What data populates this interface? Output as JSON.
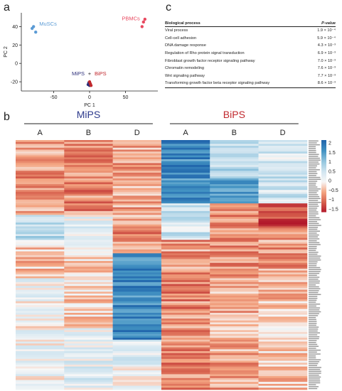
{
  "panels": {
    "a": "a",
    "b": "b",
    "c": "c"
  },
  "chart_data": [
    {
      "type": "scatter",
      "xlabel": "PC 1",
      "ylabel": "PC 2",
      "xticks": [
        -50,
        0,
        50
      ],
      "yticks": [
        -20,
        0,
        20,
        40
      ],
      "xlim": [
        -95,
        95
      ],
      "ylim": [
        -30,
        55
      ],
      "series": [
        {
          "name": "MuSCs",
          "color": "#5b9bd5",
          "points": [
            [
              -80,
              38
            ],
            [
              -78,
              40
            ],
            [
              -75,
              34
            ]
          ]
        },
        {
          "name": "PBMCs",
          "color": "#e8485f",
          "points": [
            [
              73,
              40
            ],
            [
              75,
              45
            ],
            [
              77,
              48
            ]
          ]
        },
        {
          "name": "MiPS",
          "color": "#2d2f7a",
          "points": [
            [
              -2,
              -23
            ],
            [
              -1,
              -21
            ],
            [
              0,
              -24
            ]
          ]
        },
        {
          "name": "BiPS",
          "color": "#c0282d",
          "points": [
            [
              1,
              -22
            ],
            [
              2,
              -24
            ],
            [
              0,
              -20
            ]
          ]
        }
      ],
      "annotation_plus": "+"
    },
    {
      "type": "heatmap",
      "groups": [
        {
          "name": "MiPS",
          "color": "#2d3a8c",
          "columns": [
            "A",
            "B",
            "D"
          ]
        },
        {
          "name": "BiPS",
          "color": "#c0282d",
          "columns": [
            "A",
            "B",
            "D"
          ]
        }
      ],
      "colorbar": {
        "ticks": [
          "2",
          "1.5",
          "1",
          "0.5",
          "0",
          "−0.5",
          "−1",
          "−1.5"
        ],
        "min": -1.5,
        "max": 2
      },
      "n_rows": 130
    }
  ],
  "table": {
    "header": {
      "process": "Biological process",
      "pvalue": "P-value"
    },
    "rows": [
      {
        "process": "Viral process",
        "pvalue": "1.9 × 10⁻⁴"
      },
      {
        "process": "Cell-cell adhesion",
        "pvalue": "5.9 × 10⁻⁴"
      },
      {
        "process": "DNA damage response",
        "pvalue": "4.3 × 10⁻³"
      },
      {
        "process": "Regulation of Rho protein signal transduction",
        "pvalue": "6.9 × 10⁻³"
      },
      {
        "process": "Fibroblast growth factor receptor signaling pathway",
        "pvalue": "7.0 × 10⁻³"
      },
      {
        "process": "Chromatin remodeling",
        "pvalue": "7.6 × 10⁻³"
      },
      {
        "process": "Wnt signaling pathway",
        "pvalue": "7.7 × 10⁻³"
      },
      {
        "process": "Transforming growth factor beta receptor signaling pathway",
        "pvalue": "8.6 × 10⁻³"
      }
    ]
  }
}
